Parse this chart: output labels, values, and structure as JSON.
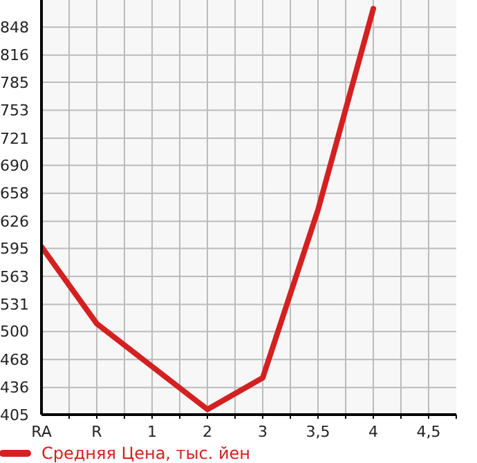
{
  "chart_data": {
    "type": "line",
    "categories": [
      "RA",
      "R",
      "1",
      "2",
      "3",
      "3,5",
      "4",
      "4,5"
    ],
    "series": [
      {
        "name": "Средняя Цена, тыс. йен",
        "color": "#d42020",
        "values": [
          597,
          509,
          460,
          411,
          447,
          639,
          869,
          null
        ]
      }
    ],
    "ylim": [
      405,
      879
    ],
    "yticks": [
      405,
      436,
      468,
      500,
      531,
      563,
      595,
      626,
      658,
      690,
      721,
      753,
      785,
      816,
      848
    ],
    "grid": true,
    "legend": "bottom",
    "marker": "none",
    "line_style": "solid"
  }
}
